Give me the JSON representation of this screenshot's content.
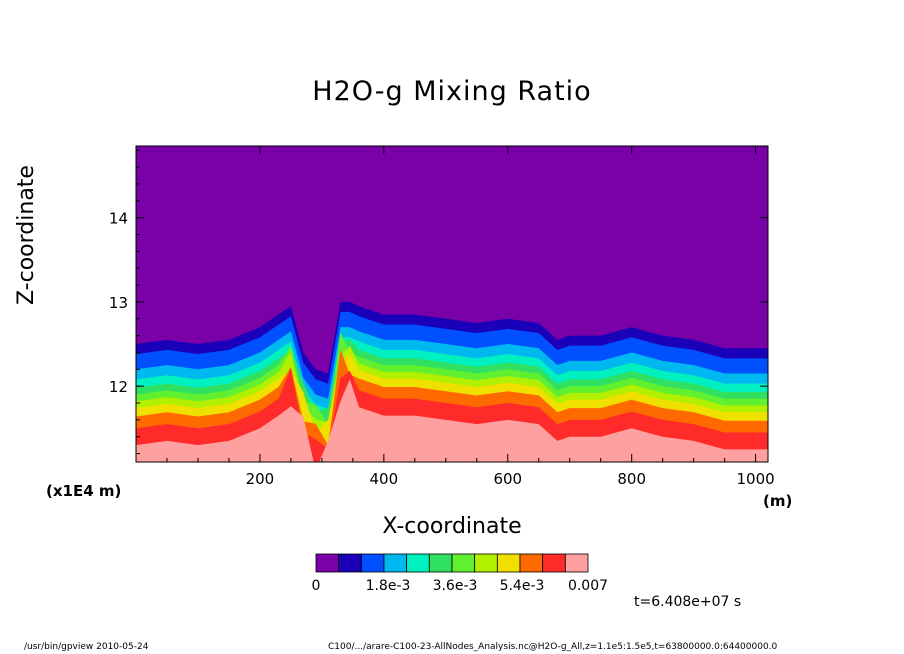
{
  "title": "H2O-g Mixing Ratio",
  "axes": {
    "xlabel": "X-coordinate",
    "ylabel": "Z-coordinate",
    "xunit": "(m)",
    "yunit": "(x1E4 m)"
  },
  "time_note": "t=6.408e+07 s",
  "footer": {
    "left": "/usr/bin/gpview  2010-05-24",
    "right": "C100/.../arare-C100-23-AllNodes_Analysis.nc@H2O-g_All,z=1.1e5:1.5e5,t=63800000.0:64400000.0"
  },
  "colors": {
    "levels": [
      "#7a00a8",
      "#1a00b8",
      "#0050ff",
      "#00b8f0",
      "#00f0c0",
      "#30e060",
      "#60f030",
      "#b0f000",
      "#f0e000",
      "#ff6a00",
      "#ff2a2a",
      "#ffa0a0"
    ],
    "axis": "#000000"
  },
  "chart_data": {
    "type": "heatmap",
    "title": "H2O-g Mixing Ratio",
    "xlabel": "X-coordinate",
    "ylabel": "Z-coordinate",
    "xlim": [
      0,
      1020
    ],
    "ylim": [
      11.1,
      14.85
    ],
    "x_ticks": [
      200,
      400,
      600,
      800,
      1000
    ],
    "y_ticks": [
      12,
      13,
      14
    ],
    "x_tick_labels": [
      "200",
      "400",
      "600",
      "800",
      "1000"
    ],
    "y_tick_labels": [
      "12",
      "13",
      "14"
    ],
    "colorbar_ticks": [
      "0",
      "1.8e-3",
      "3.6e-3",
      "5.4e-3",
      "0.007"
    ],
    "colorbar_range": [
      0,
      0.007
    ],
    "x_profile": [
      0,
      50,
      100,
      150,
      200,
      230,
      250,
      270,
      290,
      310,
      330,
      345,
      360,
      400,
      450,
      500,
      550,
      600,
      650,
      680,
      700,
      750,
      800,
      850,
      900,
      950,
      1000,
      1020
    ],
    "moisture_top_z": [
      12.5,
      12.55,
      12.5,
      12.55,
      12.7,
      12.85,
      12.95,
      12.4,
      12.2,
      12.15,
      13.0,
      13.0,
      12.95,
      12.85,
      12.85,
      12.8,
      12.75,
      12.8,
      12.75,
      12.55,
      12.6,
      12.6,
      12.7,
      12.6,
      12.55,
      12.45,
      12.45,
      12.45
    ]
  }
}
